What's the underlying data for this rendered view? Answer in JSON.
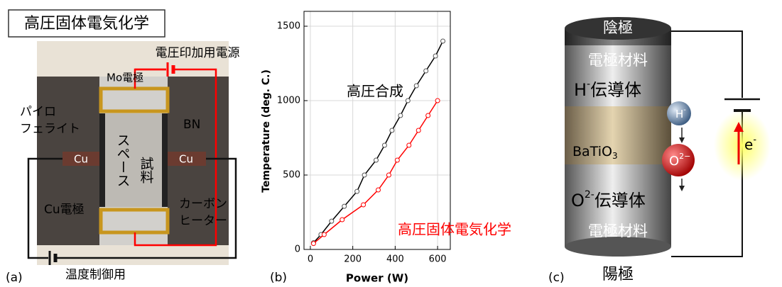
{
  "panel_a": {
    "label": "(a)",
    "title": "高圧固体電気化学",
    "power_supply": "電圧印加用電源",
    "mo_electrode": "Mo電極",
    "pyrophyllite": [
      "パイロ",
      "フェライト"
    ],
    "bn": "BN",
    "space": "スペース",
    "sample": "試料",
    "cu_left": "Cu",
    "cu_right": "Cu",
    "cu_electrode": "Cu電極",
    "heater": [
      "カーボン",
      "ヒーター"
    ],
    "temperature_control": "温度制御用"
  },
  "chart_data": {
    "type": "line",
    "label": "(b)",
    "x_label": "Power (W)",
    "y_label": "Temperature (deg. C.)",
    "xlim": [
      -30,
      660
    ],
    "ylim": [
      0,
      1600
    ],
    "xticks": [
      0,
      200,
      400,
      600
    ],
    "yticks": [
      0,
      500,
      1000,
      1500
    ],
    "grid": true,
    "series": [
      {
        "name": "高圧合成",
        "color": "#000000",
        "x": [
          15,
          50,
          100,
          160,
          220,
          255,
          310,
          350,
          385,
          425,
          460,
          500,
          545,
          590,
          625
        ],
        "values": [
          45,
          100,
          190,
          290,
          390,
          500,
          600,
          700,
          800,
          900,
          1000,
          1100,
          1200,
          1300,
          1400
        ]
      },
      {
        "name": "高圧固体電気化学",
        "color": "#ff0000",
        "x": [
          15,
          65,
          150,
          250,
          320,
          370,
          410,
          465,
          510,
          555,
          600
        ],
        "values": [
          40,
          100,
          200,
          300,
          400,
          500,
          600,
          700,
          800,
          900,
          1000
        ]
      }
    ]
  },
  "panel_c": {
    "label": "(c)",
    "cathode": "陰極",
    "electrode_top": "電極材料",
    "h_conductor": {
      "base": "H",
      "sup": "-",
      "rest": "伝導体"
    },
    "h_ion": {
      "base": "H",
      "sup": "-"
    },
    "batio3": {
      "base": "BaTiO",
      "sub": "3"
    },
    "o_ion": {
      "base": "O",
      "sup": "2−"
    },
    "o_conductor": {
      "base": "O",
      "sup": "2-",
      "rest": "伝導体"
    },
    "electrode_bottom": "電極材料",
    "anode": "陽極",
    "electron": {
      "base": "e",
      "sup": "-"
    }
  }
}
